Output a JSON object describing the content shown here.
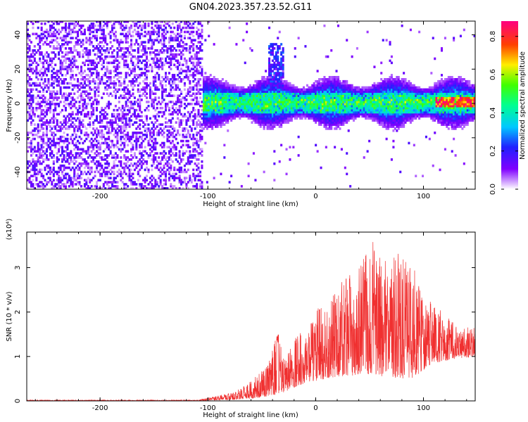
{
  "title": "GN04.2023.357.23.52.G11",
  "colorbar": {
    "label": "Normalized spectral amplitude",
    "ticks": [
      "0.0",
      "0.2",
      "0.4",
      "0.6",
      "0.8"
    ],
    "tick_values": [
      0.0,
      0.2,
      0.4,
      0.6,
      0.8
    ],
    "range": [
      0,
      0.88
    ]
  },
  "chart_data": [
    {
      "type": "heatmap",
      "xlabel": "Height of straight line (km)",
      "ylabel": "Frequency (Hz)",
      "xlim": [
        -268,
        148
      ],
      "ylim": [
        -50,
        48
      ],
      "x_ticks": [
        -200,
        -100,
        0,
        100
      ],
      "x_tick_labels": [
        "-200",
        "-100",
        "0",
        "100"
      ],
      "y_ticks": [
        -40,
        -20,
        0,
        20,
        40
      ],
      "y_tick_labels": [
        "-40",
        "-20",
        "0",
        "20",
        "40"
      ],
      "grid": false,
      "colormap": "rainbow (purple to red)",
      "description_regions": [
        {
          "x_range": [
            -268,
            -105
          ],
          "freq_range": [
            -50,
            48
          ],
          "level": "low (0.05-0.2), scattered"
        },
        {
          "x_range": [
            -105,
            148
          ],
          "freq_range": [
            -15,
            15
          ],
          "level": "medium (0.2-0.6), band around 0 Hz"
        },
        {
          "x_range": [
            -45,
            -30
          ],
          "freq_range": [
            15,
            35
          ],
          "level": "low-medium, upward plume"
        },
        {
          "x_range": [
            110,
            148
          ],
          "freq_range": [
            -3,
            3
          ],
          "level": "high (0.6-0.88)"
        }
      ]
    },
    {
      "type": "line",
      "xlabel": "Height of straight line (km)",
      "ylabel": "SNR (10 * v/v)",
      "y_multiplier_label": "(x10⁴)",
      "xlim": [
        -268,
        148
      ],
      "ylim": [
        0,
        3.8
      ],
      "x_ticks": [
        -200,
        -100,
        0,
        100
      ],
      "x_tick_labels": [
        "-200",
        "-100",
        "0",
        "100"
      ],
      "y_ticks": [
        0,
        1,
        2,
        3
      ],
      "y_tick_labels": [
        "0",
        "1",
        "2",
        "3"
      ],
      "grid": false,
      "series_color": "#f03030",
      "envelope_x": [
        -268,
        -110,
        -90,
        -75,
        -60,
        -45,
        -35,
        -28,
        -20,
        -10,
        0,
        10,
        20,
        30,
        40,
        50,
        55,
        60,
        70,
        80,
        90,
        100,
        110,
        120,
        130,
        148
      ],
      "envelope_upper": [
        0.02,
        0.02,
        0.12,
        0.2,
        0.45,
        0.8,
        1.55,
        0.9,
        1.6,
        1.5,
        2.05,
        2.2,
        2.65,
        2.9,
        3.0,
        3.55,
        3.7,
        3.2,
        3.3,
        3.4,
        3.1,
        2.3,
        2.2,
        1.95,
        1.7,
        1.65
      ],
      "envelope_lower": [
        0.0,
        0.0,
        0.02,
        0.03,
        0.05,
        0.1,
        0.15,
        0.2,
        0.3,
        0.4,
        0.45,
        0.5,
        0.55,
        0.55,
        0.6,
        0.6,
        0.6,
        0.55,
        0.55,
        0.5,
        0.5,
        0.7,
        0.85,
        0.9,
        0.95,
        1.0
      ]
    }
  ]
}
